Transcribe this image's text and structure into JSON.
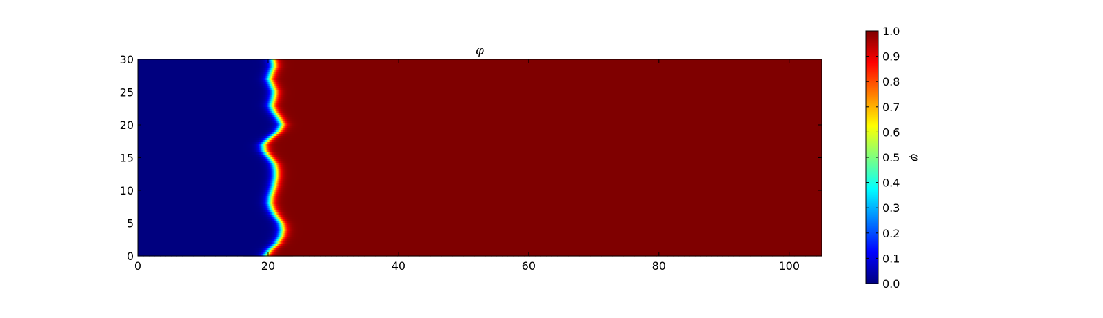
{
  "chart_data": [
    {
      "type": "heatmap",
      "title": "φ",
      "xlabel": "",
      "ylabel": "",
      "xlim": [
        0,
        105
      ],
      "ylim": [
        0,
        30
      ],
      "x_ticks": [
        0,
        20,
        40,
        60,
        80,
        100
      ],
      "y_ticks": [
        0,
        5,
        10,
        15,
        20,
        25,
        30
      ],
      "x_tick_labels": [
        "0",
        "20",
        "40",
        "60",
        "80",
        "100"
      ],
      "y_tick_labels": [
        "0",
        "5",
        "10",
        "15",
        "20",
        "25",
        "30"
      ],
      "colormap": "jet",
      "field": {
        "description_values": "phi ≈ 0 for x below the front, ≈ 1 for x above the front",
        "low_value": 0.0,
        "high_value": 1.0,
        "front_profile": {
          "y": [
            0,
            1,
            2,
            3,
            4,
            5,
            6,
            7,
            8,
            9,
            10,
            11,
            12,
            13,
            14,
            15,
            16,
            17,
            18,
            19,
            20,
            21,
            22,
            23,
            24,
            25,
            26,
            27,
            28,
            29,
            30
          ],
          "x": [
            19.6,
            20.3,
            21.4,
            22.0,
            22.2,
            22.0,
            21.3,
            20.6,
            20.3,
            20.4,
            20.7,
            21.0,
            21.2,
            21.2,
            21.0,
            20.3,
            19.4,
            19.3,
            20.3,
            21.5,
            22.1,
            21.6,
            20.9,
            20.5,
            20.8,
            21.0,
            20.6,
            20.2,
            20.5,
            20.9,
            20.7
          ]
        },
        "front_width": 1.2
      },
      "grid": false
    },
    {
      "type": "colorbar",
      "label": "φ",
      "colormap": "jet",
      "vmin": 0.0,
      "vmax": 1.0,
      "ticks": [
        0.0,
        0.1,
        0.2,
        0.3,
        0.4,
        0.5,
        0.6,
        0.7,
        0.8,
        0.9,
        1.0
      ],
      "tick_labels": [
        "0.0",
        "0.1",
        "0.2",
        "0.3",
        "0.4",
        "0.5",
        "0.6",
        "0.7",
        "0.8",
        "0.9",
        "1.0"
      ]
    }
  ],
  "colors": {
    "jet_stops": [
      "#00007f",
      "#0000ff",
      "#007fff",
      "#00ffff",
      "#7fff7f",
      "#ffff00",
      "#ff7f00",
      "#ff0000",
      "#7f0000"
    ],
    "axis_color": "#000000"
  }
}
